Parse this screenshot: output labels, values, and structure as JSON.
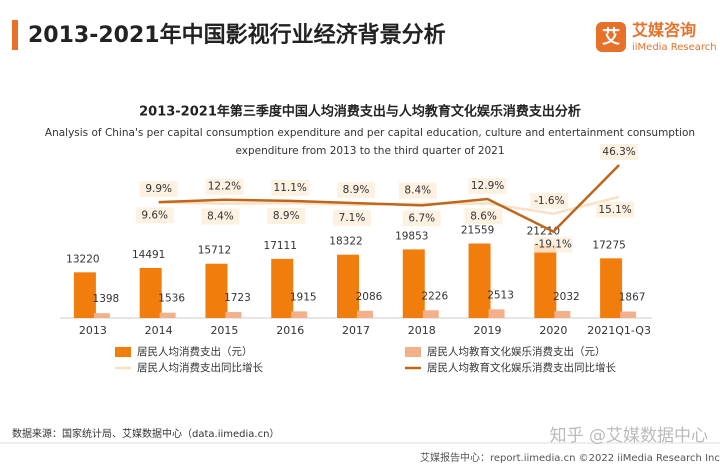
{
  "header": {
    "title": "2013-2021年中国影视行业经济背景分析",
    "logo_mark": "艾",
    "logo_name": "艾媒咨询",
    "logo_sub": "iiMedia Research"
  },
  "chart_data": {
    "type": "bar_line",
    "title": "2013-2021年第三季度中国人均消费支出与人均教育文化娱乐消费支出分析",
    "subtitle": [
      "Analysis of China's per capital consumption expenditure and per capital education, culture and entertainment consumption",
      "expenditure from 2013 to the third quarter of 2021"
    ],
    "categories": [
      "2013",
      "2014",
      "2015",
      "2016",
      "2017",
      "2018",
      "2019",
      "2020",
      "2021Q1-Q3"
    ],
    "ylim": [
      0,
      66000
    ],
    "y2lim": [
      -104,
      120
    ],
    "series": [
      {
        "name": "居民人均消费支出（元）",
        "type": "bar",
        "color": "#f07d0c",
        "values": [
          13220,
          14491,
          15712,
          17111,
          18322,
          19853,
          21559,
          21210,
          17275
        ]
      },
      {
        "name": "居民人均教育文化娱乐消费支出（元）",
        "type": "bar",
        "color": "#f4b08a",
        "values": [
          1398,
          1536,
          1723,
          1915,
          2086,
          2226,
          2513,
          2032,
          1867
        ]
      },
      {
        "name": "居民人均消费支出同比增长",
        "type": "line",
        "axis": "y2",
        "color": "#fbe0c4",
        "values": [
          null,
          9.6,
          8.4,
          8.9,
          7.1,
          8.4,
          8.6,
          -1.6,
          15.1
        ],
        "value_labels": [
          null,
          "9.6%",
          "8.4%",
          "8.9%",
          "7.1%",
          "8.4%",
          "8.6%",
          "-1.6%",
          "15.1%"
        ]
      },
      {
        "name": "居民人均教育文化娱乐消费支出同比增长",
        "type": "line",
        "axis": "y2",
        "color": "#c0661a",
        "values": [
          null,
          9.9,
          12.2,
          11.1,
          8.9,
          6.7,
          12.9,
          -19.1,
          46.3
        ],
        "value_labels": [
          null,
          "9.9%",
          "12.2%",
          "11.1%",
          "8.9%",
          "6.7%",
          "12.9%",
          "-19.1%",
          "46.3%"
        ]
      }
    ]
  },
  "source": "数据来源：国家统计局、艾媒数据中心（data.iimedia.cn）",
  "watermark": "知乎 @艾媒数据中心",
  "footer": "艾媒报告中心：report.iimedia.cn  ©2022  iiMedia Research Inc"
}
